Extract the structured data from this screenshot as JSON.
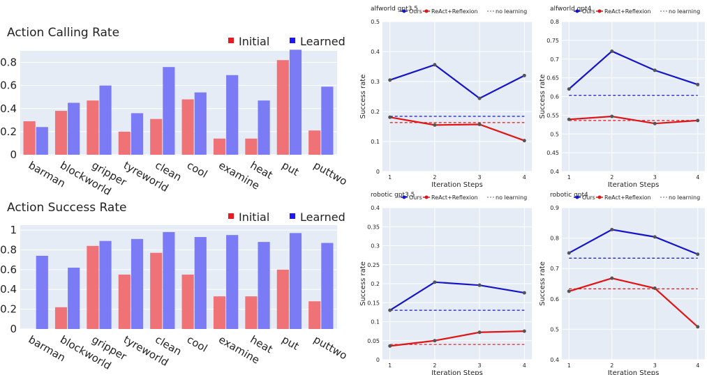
{
  "chart_data": [
    {
      "type": "bar",
      "title": "Action Calling Rate",
      "categories": [
        "barman",
        "blockworld",
        "gripper",
        "tyreworld",
        "clean",
        "cool",
        "examine",
        "heat",
        "put",
        "puttwo"
      ],
      "series": [
        {
          "name": "Initial",
          "color": "#ef7277",
          "values": [
            0.29,
            0.38,
            0.47,
            0.2,
            0.31,
            0.48,
            0.14,
            0.14,
            0.82,
            0.21
          ]
        },
        {
          "name": "Learned",
          "color": "#7b7bf6",
          "values": [
            0.24,
            0.45,
            0.6,
            0.36,
            0.76,
            0.54,
            0.69,
            0.47,
            0.91,
            0.59
          ]
        }
      ],
      "ylim": [
        0,
        0.9
      ],
      "yticks": [
        0,
        0.2,
        0.4,
        0.6,
        0.8
      ],
      "ytick_labels": [
        "0",
        "0.2",
        "0.4",
        "0.6",
        "0.8"
      ],
      "legend_position": "top-right",
      "grid": true
    },
    {
      "type": "bar",
      "title": "Action Success Rate",
      "categories": [
        "barman",
        "blockworld",
        "gripper",
        "tyreworld",
        "clean",
        "cool",
        "examine",
        "heat",
        "put",
        "puttwo"
      ],
      "series": [
        {
          "name": "Initial",
          "color": "#ef7277",
          "values": [
            0.0,
            0.22,
            0.84,
            0.55,
            0.77,
            0.55,
            0.33,
            0.33,
            0.6,
            0.28
          ]
        },
        {
          "name": "Learned",
          "color": "#7b7bf6",
          "values": [
            0.74,
            0.62,
            0.89,
            0.91,
            0.98,
            0.93,
            0.95,
            0.88,
            0.97,
            0.87
          ]
        }
      ],
      "ylim": [
        0,
        1.05
      ],
      "yticks": [
        0,
        0.2,
        0.4,
        0.6,
        0.8,
        1
      ],
      "ytick_labels": [
        "0",
        "0.2",
        "0.4",
        "0.6",
        "0.8",
        "1"
      ],
      "legend_position": "top-right",
      "grid": true
    },
    {
      "type": "line",
      "title": "alfworld gpt3.5",
      "xlabel": "Iteration Steps",
      "ylabel": "Success rate",
      "x": [
        1,
        2,
        3,
        4
      ],
      "ylim": [
        0,
        0.5
      ],
      "yticks": [
        0,
        0.1,
        0.2,
        0.3,
        0.4,
        0.5
      ],
      "ytick_labels": [
        "0",
        "0.1",
        "0.2",
        "0.3",
        "0.4",
        "0.5"
      ],
      "series": [
        {
          "name": "Ours",
          "color": "#1414c8",
          "values": [
            0.305,
            0.356,
            0.244,
            0.32
          ]
        },
        {
          "name": "ReAct+Reflexion",
          "color": "#e01414",
          "values": [
            0.181,
            0.155,
            0.157,
            0.103
          ]
        }
      ],
      "baselines": [
        {
          "name": "no learning",
          "color": "#1414c8",
          "value": 0.184
        },
        {
          "name": "no learning",
          "color": "#e01414",
          "value": 0.163
        }
      ],
      "legend_position": "top-right"
    },
    {
      "type": "line",
      "title": "alfworld gpt4",
      "xlabel": "Iteration Steps",
      "ylabel": "Success rate",
      "x": [
        1,
        2,
        3,
        4
      ],
      "ylim": [
        0.4,
        0.8
      ],
      "yticks": [
        0.4,
        0.45,
        0.5,
        0.55,
        0.6,
        0.65,
        0.7,
        0.75,
        0.8
      ],
      "ytick_labels": [
        "0.4",
        "0.45",
        "0.5",
        "0.55",
        "0.6",
        "0.65",
        "0.7",
        "0.75",
        "0.8"
      ],
      "series": [
        {
          "name": "Ours",
          "color": "#1414c8",
          "values": [
            0.62,
            0.721,
            0.67,
            0.632
          ]
        },
        {
          "name": "ReAct+Reflexion",
          "color": "#e01414",
          "values": [
            0.539,
            0.547,
            0.528,
            0.536
          ]
        }
      ],
      "baselines": [
        {
          "name": "no learning",
          "color": "#1414c8",
          "value": 0.603
        },
        {
          "name": "no learning",
          "color": "#e01414",
          "value": 0.536
        }
      ],
      "legend_position": "top-right"
    },
    {
      "type": "line",
      "title": "robotic gpt3.5",
      "xlabel": "Iteration Steps",
      "ylabel": "Success rate",
      "x": [
        1,
        2,
        3,
        4
      ],
      "ylim": [
        0,
        0.4
      ],
      "yticks": [
        0,
        0.05,
        0.1,
        0.15,
        0.2,
        0.25,
        0.3,
        0.35,
        0.4
      ],
      "ytick_labels": [
        "0",
        "0.05",
        "0.1",
        "0.15",
        "0.2",
        "0.25",
        "0.3",
        "0.35",
        "0.4"
      ],
      "series": [
        {
          "name": "Ours",
          "color": "#1414c8",
          "values": [
            0.13,
            0.204,
            0.196,
            0.176
          ]
        },
        {
          "name": "ReAct+Reflexion",
          "color": "#e01414",
          "values": [
            0.036,
            0.05,
            0.072,
            0.075
          ]
        }
      ],
      "baselines": [
        {
          "name": "no learning",
          "color": "#1414c8",
          "value": 0.13
        },
        {
          "name": "no learning",
          "color": "#e01414",
          "value": 0.04
        }
      ],
      "legend_position": "top-right"
    },
    {
      "type": "line",
      "title": "robotic gpt4",
      "xlabel": "Iteration Steps",
      "ylabel": "Success rate",
      "x": [
        1,
        2,
        3,
        4
      ],
      "ylim": [
        0.4,
        0.9
      ],
      "yticks": [
        0.4,
        0.5,
        0.6,
        0.7,
        0.8,
        0.9
      ],
      "ytick_labels": [
        "0.4",
        "0.5",
        "0.6",
        "0.7",
        "0.8",
        "0.9"
      ],
      "series": [
        {
          "name": "Ours",
          "color": "#1414c8",
          "values": [
            0.751,
            0.828,
            0.804,
            0.747
          ]
        },
        {
          "name": "ReAct+Reflexion",
          "color": "#e01414",
          "values": [
            0.625,
            0.668,
            0.635,
            0.508
          ]
        }
      ],
      "baselines": [
        {
          "name": "no learning",
          "color": "#1414c8",
          "value": 0.734
        },
        {
          "name": "no learning",
          "color": "#e01414",
          "value": 0.633
        }
      ],
      "legend_position": "top-right"
    }
  ]
}
